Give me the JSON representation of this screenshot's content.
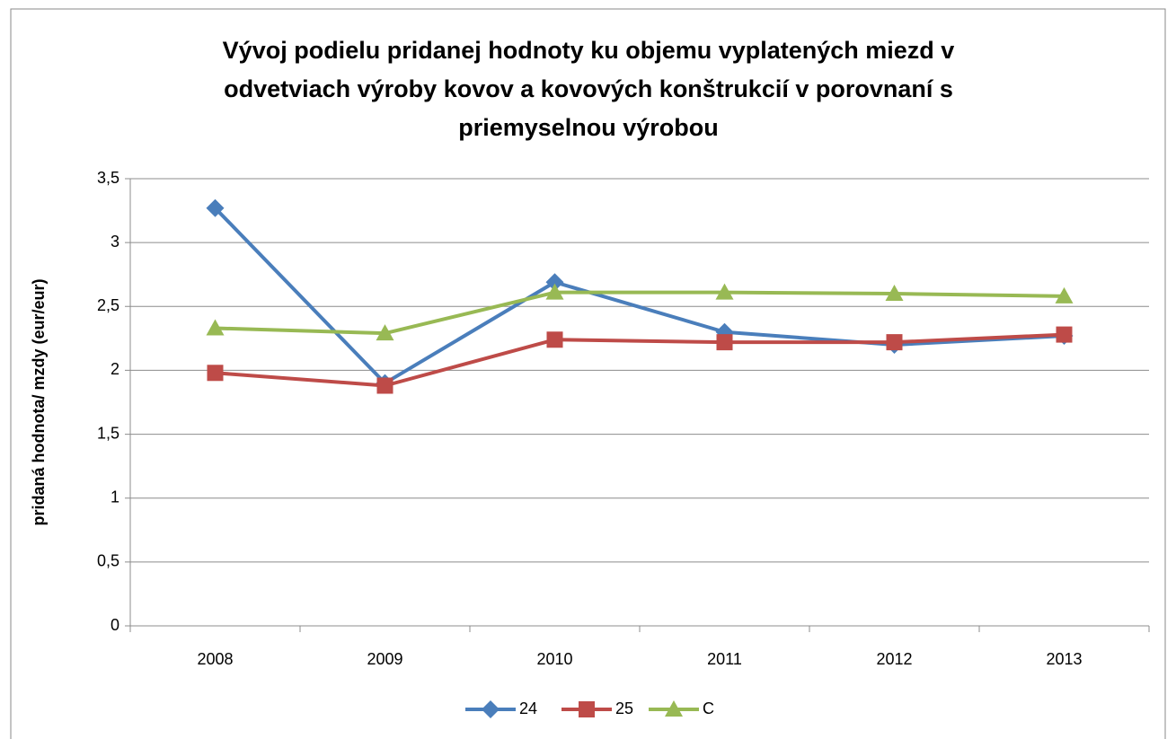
{
  "chart_data": {
    "type": "line",
    "title": [
      "Vývoj podielu pridanej hodnoty ku objemu vyplatených miezd v",
      "odvetviach výroby kovov a kovových konštrukcií v porovnaní s",
      "priemyselnou výrobou"
    ],
    "y_label": "pridaná hodnota/ mzdy (eur/eur)",
    "categories": [
      "2008",
      "2009",
      "2010",
      "2011",
      "2012",
      "2013"
    ],
    "series": [
      {
        "name": "24",
        "color": "#4a7ebb",
        "marker": "diamond",
        "values": [
          3.27,
          1.9,
          2.69,
          2.3,
          2.2,
          2.27
        ]
      },
      {
        "name": "25",
        "color": "#be4b48",
        "marker": "square",
        "values": [
          1.98,
          1.88,
          2.24,
          2.22,
          2.22,
          2.28
        ]
      },
      {
        "name": "C",
        "color": "#98b954",
        "marker": "triangle",
        "values": [
          2.33,
          2.29,
          2.61,
          2.61,
          2.6,
          2.58
        ]
      }
    ],
    "ylim": [
      0,
      3.5
    ],
    "yticks": [
      0,
      {
        "value": 0.5,
        "label": "0,5"
      },
      1,
      {
        "value": 1.5,
        "label": "1,5"
      },
      2,
      {
        "value": 2.5,
        "label": "2,5"
      },
      3,
      {
        "value": 3.5,
        "label": "3,5"
      }
    ],
    "grid": true,
    "legend": "bottom"
  }
}
